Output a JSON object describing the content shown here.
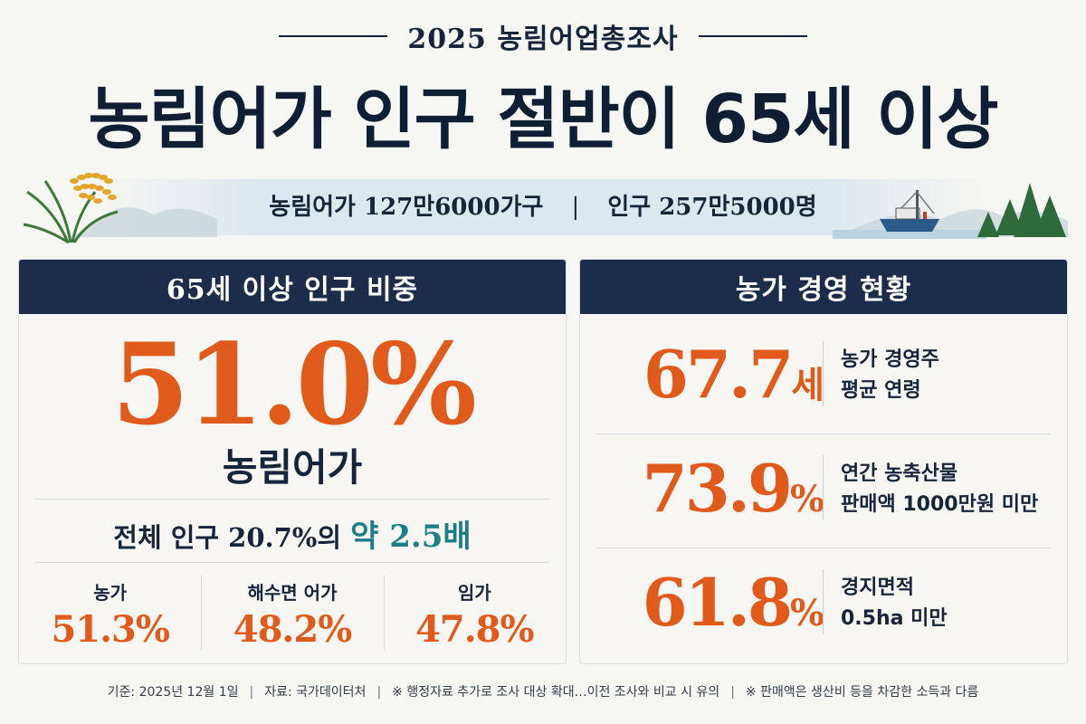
{
  "header": {
    "subtitle": "2025 농림어업총조사",
    "headline": "농림어가 인구 절반이 65세 이상"
  },
  "banner": {
    "households": "농림어가 127만6000가구",
    "separator": "|",
    "population": "인구 257만5000명"
  },
  "left_panel": {
    "title": "65세 이상 인구 비중",
    "main_value": "51.0%",
    "main_label": "농림어가",
    "compare_prefix": "전체 인구 20.7%의",
    "compare_highlight": "약 2.5배",
    "breakdown": [
      {
        "label": "농가",
        "value": "51.3%"
      },
      {
        "label": "해수면 어가",
        "value": "48.2%"
      },
      {
        "label": "임가",
        "value": "47.8%"
      }
    ]
  },
  "right_panel": {
    "title": "농가 경영 현황",
    "rows": [
      {
        "value": "67.7",
        "unit": "세",
        "desc_line1": "농가 경영주",
        "desc_line2": "평균 연령"
      },
      {
        "value": "73.9",
        "unit": "%",
        "desc_line1": "연간 농축산물",
        "desc_line2": "판매액 1000만원 미만"
      },
      {
        "value": "61.8",
        "unit": "%",
        "desc_line1": "경지면적",
        "desc_line2": "0.5ha 미만"
      }
    ]
  },
  "footer": {
    "basis": "기준: 2025년 12월 1일",
    "source": "자료: 국가데이터처",
    "note1": "※ 행정자료 추가로 조사 대상 확대…이전 조사와 비교 시 유의",
    "note2": "※ 판매액은 생산비 등을 차감한 소득과 다름",
    "separator": "|"
  },
  "colors": {
    "navy": "#1b2d4a",
    "accent_orange": "#e05a1c",
    "accent_teal": "#1d7f86",
    "background": "#f6f6f3"
  },
  "icons": [
    "rice-plant-icon",
    "mountain-icon",
    "fishing-boat-icon",
    "forest-icon"
  ]
}
